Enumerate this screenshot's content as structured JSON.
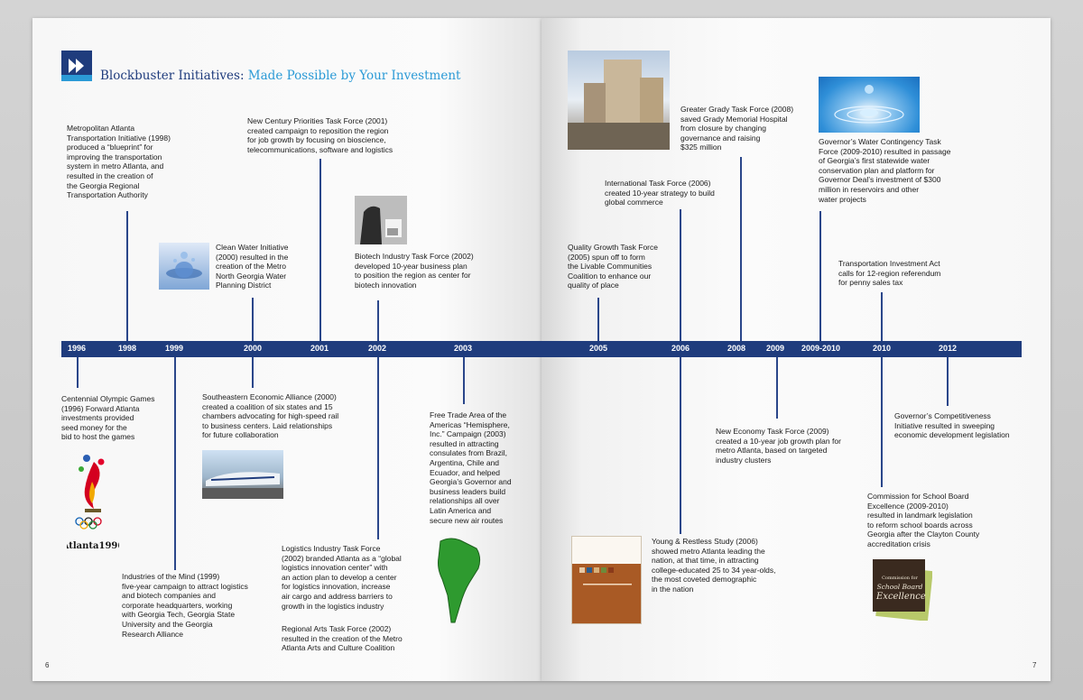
{
  "header": {
    "title_part1": "Blockbuster Initiatives:",
    "title_part2": " Made Possible by Your Investment"
  },
  "colors": {
    "navy": "#1f3c7d",
    "accent_blue": "#2b9ad6"
  },
  "years": {
    "y1996": "1996",
    "y1998": "1998",
    "y1999": "1999",
    "y2000": "2000",
    "y2001": "2001",
    "y2002": "2002",
    "y2003": "2003",
    "y2005": "2005",
    "y2006": "2006",
    "y2008": "2008",
    "y2009": "2009",
    "y20092010": "2009-2010",
    "y2010": "2010",
    "y2012": "2012"
  },
  "entries": {
    "metro_transport": "Metropolitan Atlanta\nTransportation Initiative (1998)\nproduced a “blueprint” for\nimproving the transportation\nsystem in metro Atlanta, and\nresulted in the creation of\nthe Georgia Regional\nTransportation Authority",
    "new_century": "New Century Priorities Task Force (2001)\ncreated campaign to reposition the region\nfor job growth by focusing on bioscience,\ntelecommunications, software and logistics",
    "clean_water": "Clean Water Initiative\n(2000) resulted in the\ncreation of the Metro\nNorth Georgia Water\nPlanning District",
    "biotech": "Biotech Industry Task Force (2002)\ndeveloped 10-year business plan\nto position the region as center for\nbiotech innovation",
    "olympic": "Centennial Olympic Games\n(1996) Forward Atlanta\ninvestments provided\nseed money for the\nbid to host the games",
    "southeastern": "Southeastern Economic Alliance (2000)\ncreated a coalition of six states and 15\nchambers advocating for high-speed rail\nto business centers. Laid relationships\nfor future collaboration",
    "free_trade": "Free Trade Area of the\nAmericas “Hemisphere,\nInc.” Campaign (2003)\nresulted in attracting\nconsulates from Brazil,\nArgentina, Chile and\nEcuador, and helped\nGeorgia’s Governor and\nbusiness leaders build\nrelationships all over\nLatin America and\nsecure new air routes",
    "industries_mind": "Industries of the Mind (1999)\nfive-year campaign to attract logistics\nand biotech companies and\ncorporate headquarters, working\nwith Georgia Tech, Georgia State\nUniversity and the Georgia\nResearch Alliance",
    "logistics": "Logistics Industry Task Force\n(2002) branded Atlanta as a “global\nlogistics innovation center” with\nan action plan to develop a center\nfor logistics innovation, increase\nair cargo and address barriers to\ngrowth in the logistics industry",
    "regional_arts": "Regional Arts Task Force (2002)\nresulted in the creation of the Metro\nAtlanta Arts and Culture Coalition",
    "grady": "Greater Grady Task Force (2008)\nsaved Grady Memorial Hospital\nfrom closure by changing\ngovernance and raising\n$325 million",
    "international": "International Task Force (2006)\ncreated 10-year strategy to build\nglobal commerce",
    "water_contingency": "Governor’s Water Contingency Task\nForce (2009-2010) resulted in passage\nof Georgia’s first statewide water\nconservation plan and platform for\nGovernor Deal’s investment of $300\nmillion in reservoirs and other\nwater projects",
    "quality_growth": "Quality Growth Task Force\n(2005) spun off to form\nthe Livable Communities\nCoalition to enhance our\nquality of place",
    "transport_invest": "Transportation Investment Act\ncalls for 12-region referendum\nfor penny sales tax",
    "competitiveness": "Governor’s Competitiveness\nInitiative resulted in sweeping\neconomic development legislation",
    "new_economy": "New Economy Task Force (2009)\ncreated a 10-year job growth plan for\nmetro Atlanta, based on targeted\nindustry clusters",
    "school_board": "Commission for School Board\nExcellence (2009-2010)\nresulted in landmark legislation\nto reform school boards across\nGeorgia after the Clayton County\naccreditation crisis",
    "young_restless": "Young & Restless Study (2006)\nshowed metro Atlanta leading the\nnation, at that time, in attracting\ncollege-educated 25 to 34 year-olds,\nthe most coveted demographic\nin the nation"
  },
  "logos": {
    "atlanta1996": "Atlanta1996",
    "commission_line1": "Commission for",
    "commission_line2": "School Board",
    "commission_line3": "Excellence"
  },
  "pages": {
    "left": "6",
    "right": "7"
  }
}
